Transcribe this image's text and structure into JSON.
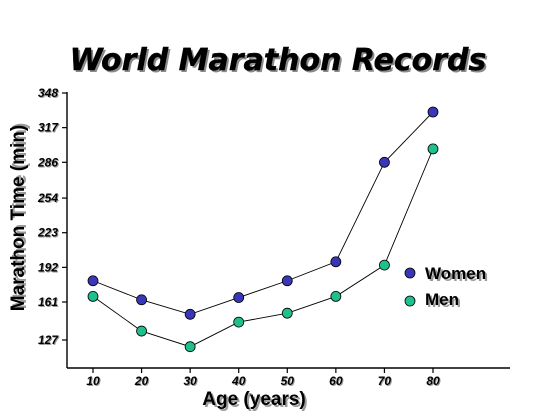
{
  "chart_data": {
    "type": "line",
    "title": "World Marathon Records",
    "xlabel": "Age (years)",
    "ylabel": "Marathon Time (min)",
    "x": [
      10,
      20,
      30,
      40,
      50,
      60,
      70,
      80
    ],
    "x_ticks": [
      "10",
      "20",
      "30",
      "40",
      "50",
      "60",
      "70",
      "80"
    ],
    "y_ticks": [
      "127",
      "161",
      "192",
      "223",
      "254",
      "286",
      "317",
      "348"
    ],
    "ylim": [
      112,
      348
    ],
    "grid": false,
    "legend_position": "right",
    "series": [
      {
        "name": "Women",
        "color": "#3a36b8",
        "values": [
          180,
          163,
          150,
          165,
          180,
          197,
          286,
          331
        ]
      },
      {
        "name": "Men",
        "color": "#1fbf8e",
        "values": [
          166,
          135,
          121,
          143,
          151,
          166,
          194,
          298
        ]
      }
    ]
  }
}
